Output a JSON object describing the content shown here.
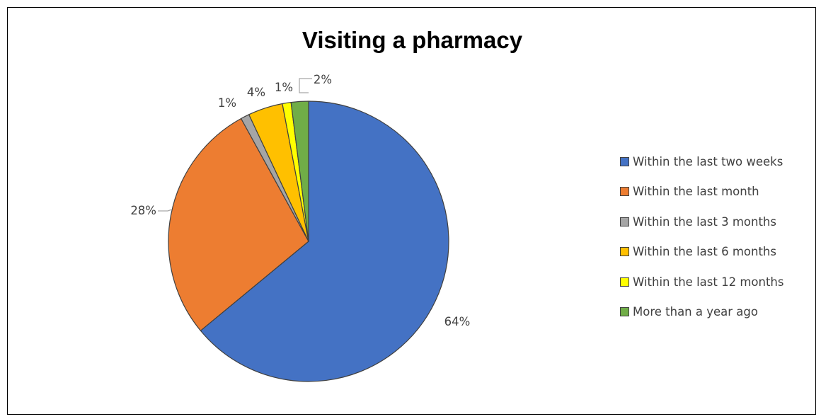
{
  "chart_data": {
    "type": "pie",
    "title": "Visiting a pharmacy",
    "categories": [
      "Within the last two weeks",
      "Within the last month",
      "Within the last 3 months",
      "Within the last 6 months",
      "Within the last 12 months",
      "More than a year ago"
    ],
    "values": [
      64,
      28,
      1,
      4,
      1,
      2
    ],
    "data_labels": [
      "64%",
      "28%",
      "1%",
      "4%",
      "1%",
      "2%"
    ],
    "colors": [
      "#4472C4",
      "#ED7D31",
      "#A5A5A5",
      "#FFC000",
      "#FFFF00",
      "#70AD47"
    ],
    "legend_position": "right"
  }
}
